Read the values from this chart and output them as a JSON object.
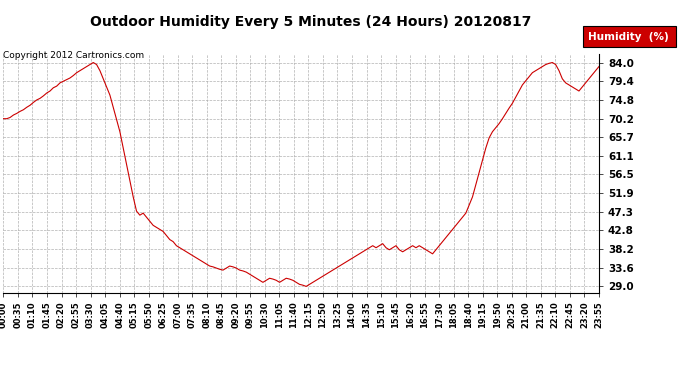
{
  "title": "Outdoor Humidity Every 5 Minutes (24 Hours) 20120817",
  "copyright": "Copyright 2012 Cartronics.com",
  "legend_label": "Humidity  (%)",
  "line_color": "#cc0000",
  "bg_color": "#ffffff",
  "grid_color": "#aaaaaa",
  "yticks": [
    29.0,
    33.6,
    38.2,
    42.8,
    47.3,
    51.9,
    56.5,
    61.1,
    65.7,
    70.2,
    74.8,
    79.4,
    84.0
  ],
  "ymin": 27.5,
  "ymax": 86.0,
  "xtick_labels": [
    "00:00",
    "00:35",
    "01:10",
    "01:45",
    "02:20",
    "02:55",
    "03:30",
    "04:05",
    "04:40",
    "05:15",
    "05:50",
    "06:25",
    "07:00",
    "07:35",
    "08:10",
    "08:45",
    "09:20",
    "09:55",
    "10:30",
    "11:05",
    "11:40",
    "12:15",
    "12:50",
    "13:25",
    "14:00",
    "14:35",
    "15:10",
    "15:45",
    "16:20",
    "16:55",
    "17:30",
    "18:05",
    "18:40",
    "19:15",
    "19:50",
    "20:25",
    "21:00",
    "21:35",
    "22:10",
    "22:45",
    "23:20",
    "23:55"
  ],
  "humidity_values": [
    70.2,
    70.2,
    70.5,
    71.1,
    71.5,
    72.0,
    72.4,
    73.0,
    73.5,
    74.2,
    74.8,
    75.2,
    75.8,
    76.5,
    77.0,
    77.8,
    78.2,
    79.0,
    79.4,
    79.8,
    80.2,
    80.8,
    81.5,
    82.0,
    82.5,
    83.0,
    83.5,
    84.0,
    83.5,
    82.0,
    80.0,
    78.0,
    76.0,
    73.0,
    70.0,
    67.0,
    63.0,
    59.0,
    55.0,
    51.0,
    47.5,
    46.5,
    47.0,
    46.0,
    45.0,
    44.0,
    43.5,
    43.0,
    42.5,
    41.5,
    40.5,
    40.0,
    39.0,
    38.5,
    38.0,
    37.5,
    37.0,
    36.5,
    36.0,
    35.5,
    35.0,
    34.5,
    34.0,
    33.8,
    33.5,
    33.2,
    33.0,
    33.5,
    34.0,
    33.8,
    33.5,
    33.0,
    32.8,
    32.5,
    32.0,
    31.5,
    31.0,
    30.5,
    30.0,
    30.5,
    31.0,
    30.8,
    30.5,
    30.0,
    30.5,
    31.0,
    30.8,
    30.5,
    30.0,
    29.5,
    29.3,
    29.0,
    29.5,
    30.0,
    30.5,
    31.0,
    31.5,
    32.0,
    32.5,
    33.0,
    33.5,
    34.0,
    34.5,
    35.0,
    35.5,
    36.0,
    36.5,
    37.0,
    37.5,
    38.0,
    38.5,
    39.0,
    38.5,
    39.0,
    39.5,
    38.5,
    38.0,
    38.5,
    39.0,
    38.0,
    37.5,
    38.0,
    38.5,
    39.0,
    38.5,
    39.0,
    38.5,
    38.0,
    37.5,
    37.0,
    38.0,
    39.0,
    40.0,
    41.0,
    42.0,
    43.0,
    44.0,
    45.0,
    46.0,
    47.0,
    49.0,
    51.0,
    54.0,
    57.0,
    60.0,
    63.0,
    65.5,
    67.0,
    68.0,
    69.0,
    70.2,
    71.5,
    72.8,
    74.0,
    75.5,
    77.0,
    78.5,
    79.5,
    80.5,
    81.5,
    82.0,
    82.5,
    83.0,
    83.5,
    83.8,
    84.0,
    83.5,
    82.0,
    80.0,
    79.0,
    78.5,
    78.0,
    77.5,
    77.0,
    78.0,
    79.0,
    80.0,
    81.0,
    82.0,
    83.0
  ],
  "legend_box_color": "#cc0000",
  "legend_text_color": "#ffffff",
  "title_fontsize": 10,
  "ytick_fontsize": 7.5,
  "xtick_fontsize": 6,
  "copyright_fontsize": 6.5
}
